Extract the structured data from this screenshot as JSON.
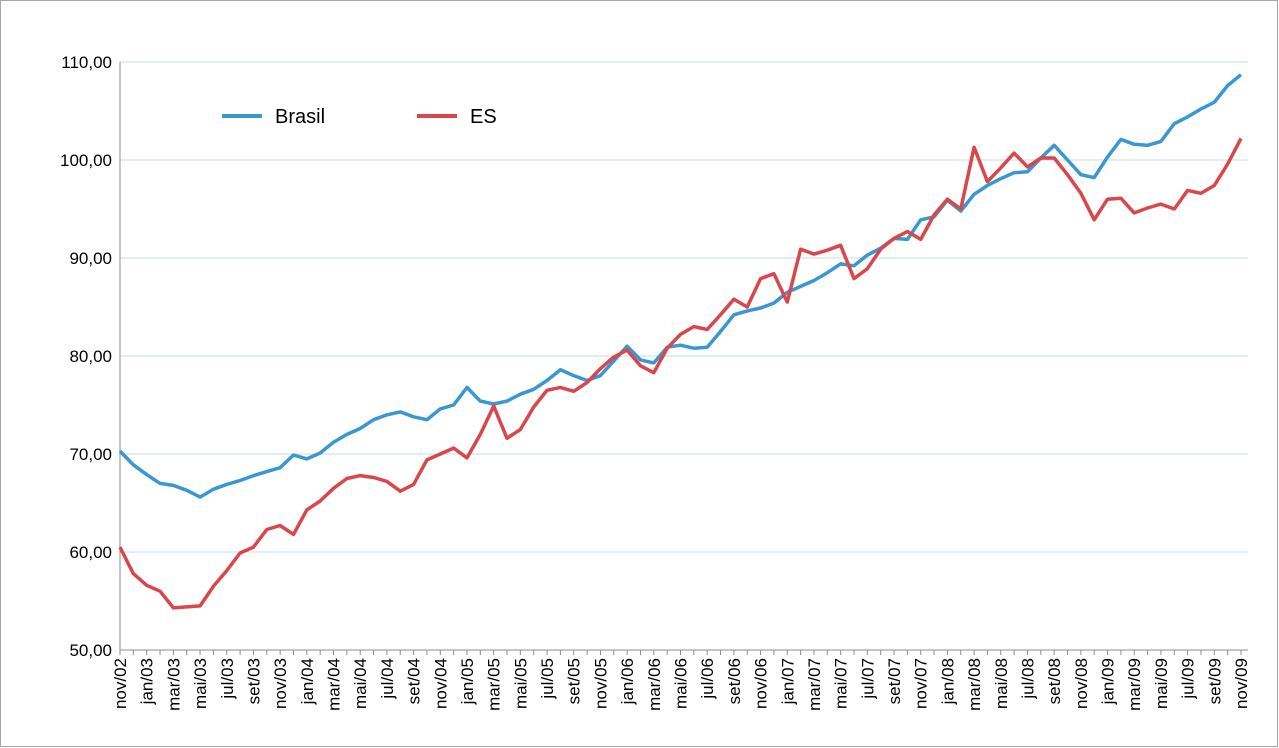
{
  "chart_data": {
    "type": "line",
    "categories": [
      "nov/02",
      null,
      "jan/03",
      null,
      "mar/03",
      null,
      "mai/03",
      null,
      "jul/03",
      null,
      "set/03",
      null,
      "nov/03",
      null,
      "jan/04",
      null,
      "mar/04",
      null,
      "mai/04",
      null,
      "jul/04",
      null,
      "set/04",
      null,
      "nov/04",
      null,
      "jan/05",
      null,
      "mar/05",
      null,
      "mai/05",
      null,
      "jul/05",
      null,
      "set/05",
      null,
      "nov/05",
      null,
      "jan/06",
      null,
      "mar/06",
      null,
      "mai/06",
      null,
      "jul/06",
      null,
      "set/06",
      null,
      "nov/06",
      null,
      "jan/07",
      null,
      "mar/07",
      null,
      "mai/07",
      null,
      "jul/07",
      null,
      "set/07",
      null,
      "nov/07",
      null,
      "jan/08",
      null,
      "mar/08",
      null,
      "mai/08",
      null,
      "jul/08",
      null,
      "set/08",
      null,
      "nov/08",
      null,
      "jan/09",
      null,
      "mar/09",
      null,
      "mai/09",
      null,
      "jul/09",
      null,
      "set/09",
      null,
      "nov/09"
    ],
    "series": [
      {
        "name": "Brasil",
        "color": "#3a97cf",
        "values": [
          70.3,
          68.9,
          67.9,
          67.0,
          66.8,
          66.3,
          65.6,
          66.4,
          66.9,
          67.3,
          67.8,
          68.2,
          68.6,
          69.9,
          69.5,
          70.1,
          71.2,
          72.0,
          72.6,
          73.5,
          74.0,
          74.3,
          73.8,
          73.5,
          74.6,
          75.0,
          76.8,
          75.4,
          75.1,
          75.4,
          76.1,
          76.6,
          77.5,
          78.6,
          78.0,
          77.5,
          78.0,
          79.5,
          81.0,
          79.6,
          79.3,
          80.9,
          81.1,
          80.8,
          80.9,
          82.5,
          84.2,
          84.6,
          84.9,
          85.4,
          86.5,
          87.1,
          87.7,
          88.5,
          89.4,
          89.2,
          90.3,
          91.0,
          92.0,
          91.9,
          93.9,
          94.2,
          95.9,
          94.8,
          96.5,
          97.4,
          98.1,
          98.7,
          98.8,
          100.2,
          101.5,
          100.0,
          98.5,
          98.2,
          100.3,
          102.1,
          101.6,
          101.5,
          101.9,
          103.7,
          104.4,
          105.2,
          105.9,
          107.6,
          108.7
        ]
      },
      {
        "name": "ES",
        "color": "#d9474b",
        "values": [
          60.5,
          57.8,
          56.6,
          56.0,
          54.3,
          54.4,
          54.5,
          56.5,
          58.1,
          59.9,
          60.5,
          62.3,
          62.7,
          61.8,
          64.3,
          65.2,
          66.5,
          67.5,
          67.8,
          67.6,
          67.2,
          66.2,
          66.9,
          69.4,
          70.0,
          70.6,
          69.6,
          72.0,
          74.9,
          71.6,
          72.5,
          74.8,
          76.5,
          76.8,
          76.4,
          77.3,
          78.7,
          79.9,
          80.6,
          79.0,
          78.3,
          80.8,
          82.2,
          83.0,
          82.7,
          84.2,
          85.8,
          85.0,
          87.9,
          88.4,
          85.5,
          90.9,
          90.4,
          90.8,
          91.3,
          87.9,
          88.9,
          90.9,
          92.0,
          92.7,
          91.9,
          94.4,
          96.0,
          95.0,
          101.3,
          97.8,
          99.2,
          100.7,
          99.3,
          100.2,
          100.2,
          98.5,
          96.6,
          93.9,
          96.0,
          96.1,
          94.6,
          95.1,
          95.5,
          95.0,
          96.9,
          96.6,
          97.4,
          99.6,
          102.2
        ]
      }
    ],
    "ylim": [
      50,
      110
    ],
    "yticks": [
      {
        "value": 50,
        "label": "50,00"
      },
      {
        "value": 60,
        "label": "60,00"
      },
      {
        "value": 70,
        "label": "70,00"
      },
      {
        "value": 80,
        "label": "80,00"
      },
      {
        "value": 90,
        "label": "90,00"
      },
      {
        "value": 100,
        "label": "100,00"
      },
      {
        "value": 110,
        "label": "110,00"
      }
    ],
    "grid": true,
    "legend": "upper left"
  }
}
